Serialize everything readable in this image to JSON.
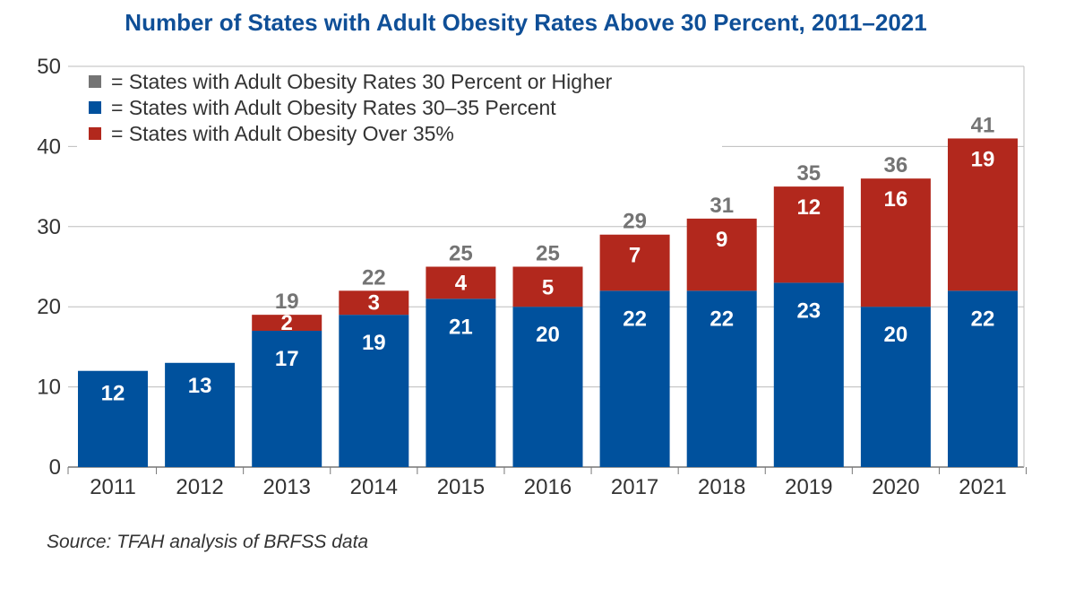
{
  "chart_data": {
    "type": "bar",
    "stacked": true,
    "title": "Number of States with Adult Obesity Rates Above 30 Percent, 2011–2021",
    "xlabel": "",
    "ylabel": "",
    "ylim": [
      0,
      50
    ],
    "yticks": [
      "0",
      "10",
      "20",
      "30",
      "40",
      "50"
    ],
    "grid": true,
    "legend_position": "top-left",
    "categories": [
      "2011",
      "2012",
      "2013",
      "2014",
      "2015",
      "2016",
      "2017",
      "2018",
      "2019",
      "2020",
      "2021"
    ],
    "totals": [
      null,
      null,
      19,
      22,
      25,
      25,
      29,
      31,
      35,
      36,
      41
    ],
    "series": [
      {
        "name": "= States with Adult Obesity Rates 30–35 Percent",
        "color": "#00519d",
        "values": [
          12,
          13,
          17,
          19,
          21,
          20,
          22,
          22,
          23,
          20,
          22
        ]
      },
      {
        "name": "= States with Adult Obesity Over 35%",
        "color": "#b2281d",
        "values": [
          0,
          0,
          2,
          3,
          4,
          5,
          7,
          9,
          12,
          16,
          19
        ]
      }
    ],
    "legend": [
      {
        "label": "= States with Adult Obesity Rates 30 Percent or Higher",
        "color": "#747474"
      },
      {
        "label": "= States with Adult Obesity Rates 30–35 Percent",
        "color": "#00519d"
      },
      {
        "label": "= States with Adult Obesity Over 35%",
        "color": "#b2281d"
      }
    ],
    "total_label_color": "#747474",
    "source": "Source: TFAH analysis of BRFSS data"
  }
}
